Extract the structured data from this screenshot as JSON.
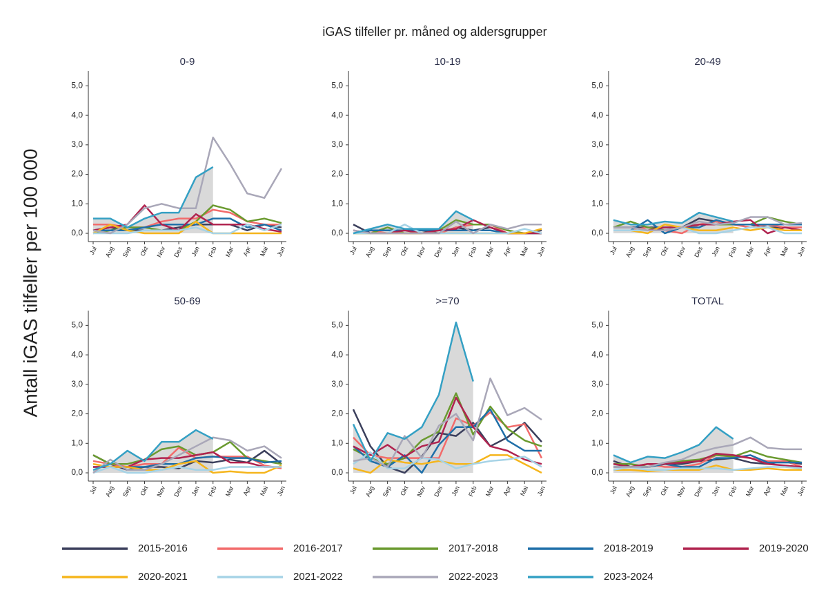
{
  "title": "iGAS tilfeller pr. måned og aldersgrupper",
  "ylabel": "Antall iGAS tilfeller per 100 000",
  "legend": [
    {
      "name": "2015-2016",
      "color": "#3b3f5c"
    },
    {
      "name": "2016-2017",
      "color": "#f26b6b"
    },
    {
      "name": "2017-2018",
      "color": "#6a9a2f"
    },
    {
      "name": "2018-2019",
      "color": "#1f6fa8"
    },
    {
      "name": "2019-2020",
      "color": "#b0234f"
    },
    {
      "name": "2020-2021",
      "color": "#f5b51c"
    },
    {
      "name": "2021-2022",
      "color": "#a6d3e6"
    },
    {
      "name": "2022-2023",
      "color": "#a9a7b8"
    },
    {
      "name": "2023-2024",
      "color": "#34a0c4",
      "area_color": "#d9d9d9"
    }
  ],
  "chart_data": [
    {
      "type": "line",
      "title": "0-9",
      "categories": [
        "Jul",
        "Aug",
        "Sep",
        "Okt",
        "Nov",
        "Des",
        "Jan",
        "Feb",
        "Mar",
        "Apr",
        "Mai",
        "Jun"
      ],
      "ylim": [
        -0.28,
        5.5
      ],
      "yticks": [
        {
          "value": 0,
          "label": "0,0"
        },
        {
          "value": 1,
          "label": "1,0"
        },
        {
          "value": 2,
          "label": "2,0"
        },
        {
          "value": 3,
          "label": "3,0"
        },
        {
          "value": 4,
          "label": "4,0"
        },
        {
          "value": 5,
          "label": "5,0"
        }
      ],
      "series": [
        {
          "values": [
            0.1,
            0.2,
            0.1,
            0.1,
            0.1,
            0.2,
            0.3,
            0.3,
            0.3,
            0.1,
            0.3,
            0.2
          ]
        },
        {
          "values": [
            0.3,
            0.3,
            0.2,
            0.2,
            0.4,
            0.5,
            0.5,
            0.8,
            0.7,
            0.4,
            0.3,
            0.3
          ]
        },
        {
          "values": [
            0.0,
            0.1,
            0.2,
            0.2,
            0.1,
            0.1,
            0.4,
            0.95,
            0.8,
            0.4,
            0.5,
            0.35
          ]
        },
        {
          "values": [
            0.1,
            0.1,
            0.1,
            0.2,
            0.3,
            0.3,
            0.3,
            0.5,
            0.5,
            0.2,
            0.3,
            0.1
          ]
        },
        {
          "values": [
            0.1,
            0.2,
            0.3,
            0.95,
            0.3,
            0.1,
            0.65,
            0.3,
            0.3,
            0.3,
            0.15,
            0.05
          ]
        },
        {
          "values": [
            0.0,
            0.3,
            0.1,
            0.0,
            0.0,
            0.0,
            0.4,
            0.0,
            0.0,
            0.0,
            0.0,
            0.0
          ]
        },
        {
          "values": [
            0.0,
            0.0,
            0.0,
            0.1,
            0.1,
            0.1,
            0.2,
            0.0,
            0.0,
            0.3,
            0.1,
            0.3
          ]
        },
        {
          "values": [
            0.1,
            0.0,
            0.3,
            0.85,
            1.0,
            0.85,
            0.85,
            3.25,
            2.35,
            1.35,
            1.2,
            2.2
          ]
        },
        {
          "values": [
            0.5,
            0.5,
            0.2,
            0.5,
            0.7,
            0.7,
            1.9,
            2.25,
            null,
            null,
            null,
            null
          ]
        }
      ]
    },
    {
      "type": "line",
      "title": "10-19",
      "categories": [
        "Jul",
        "Aug",
        "Sep",
        "Okt",
        "Nov",
        "Des",
        "Jan",
        "Feb",
        "Mar",
        "Apr",
        "Mai",
        "Jun"
      ],
      "ylim": [
        -0.28,
        5.5
      ],
      "yticks": [
        {
          "value": 0,
          "label": "0,0"
        },
        {
          "value": 1,
          "label": "1,0"
        },
        {
          "value": 2,
          "label": "2,0"
        },
        {
          "value": 3,
          "label": "3,0"
        },
        {
          "value": 4,
          "label": "4,0"
        },
        {
          "value": 5,
          "label": "5,0"
        }
      ],
      "series": [
        {
          "values": [
            0.3,
            0.0,
            0.0,
            0.1,
            0.1,
            0.0,
            0.2,
            0.1,
            0.2,
            0.0,
            0.0,
            0.1
          ]
        },
        {
          "values": [
            0.0,
            0.1,
            0.0,
            0.0,
            0.0,
            0.0,
            0.2,
            0.3,
            0.3,
            0.0,
            0.0,
            0.0
          ]
        },
        {
          "values": [
            0.0,
            0.0,
            0.2,
            0.0,
            0.0,
            0.1,
            0.45,
            0.3,
            0.3,
            0.1,
            0.0,
            0.0
          ]
        },
        {
          "values": [
            0.0,
            0.1,
            0.1,
            0.1,
            0.1,
            0.1,
            0.1,
            0.1,
            0.1,
            0.0,
            0.0,
            0.0
          ]
        },
        {
          "values": [
            0.1,
            0.0,
            0.0,
            0.1,
            0.0,
            0.1,
            0.15,
            0.45,
            0.2,
            0.0,
            0.0,
            0.0
          ]
        },
        {
          "values": [
            0.0,
            0.0,
            0.0,
            0.0,
            0.0,
            0.0,
            0.0,
            0.0,
            0.0,
            0.0,
            0.0,
            0.15
          ]
        },
        {
          "values": [
            0.0,
            0.0,
            0.0,
            0.3,
            0.0,
            0.0,
            0.0,
            0.0,
            0.0,
            0.0,
            0.15,
            0.0
          ]
        },
        {
          "values": [
            0.1,
            0.0,
            0.0,
            0.0,
            0.0,
            0.0,
            0.4,
            0.0,
            0.3,
            0.15,
            0.3,
            0.3
          ]
        },
        {
          "values": [
            0.0,
            0.15,
            0.3,
            0.15,
            0.15,
            0.15,
            0.75,
            0.45,
            null,
            null,
            null,
            null
          ]
        }
      ]
    },
    {
      "type": "line",
      "title": "20-49",
      "categories": [
        "Jul",
        "Aug",
        "Sep",
        "Okt",
        "Nov",
        "Des",
        "Jan",
        "Feb",
        "Mar",
        "Apr",
        "Mai",
        "Jun"
      ],
      "ylim": [
        -0.28,
        5.5
      ],
      "yticks": [
        {
          "value": 0,
          "label": "0,0"
        },
        {
          "value": 1,
          "label": "1,0"
        },
        {
          "value": 2,
          "label": "2,0"
        },
        {
          "value": 3,
          "label": "3,0"
        },
        {
          "value": 4,
          "label": "4,0"
        },
        {
          "value": 5,
          "label": "5,0"
        }
      ],
      "series": [
        {
          "values": [
            0.2,
            0.2,
            0.2,
            0.2,
            0.2,
            0.5,
            0.4,
            0.3,
            0.3,
            0.2,
            0.2,
            0.2
          ]
        },
        {
          "values": [
            0.1,
            0.1,
            0.2,
            0.1,
            0.0,
            0.3,
            0.4,
            0.3,
            0.2,
            0.3,
            0.2,
            0.2
          ]
        },
        {
          "values": [
            0.2,
            0.4,
            0.2,
            0.1,
            0.2,
            0.3,
            0.3,
            0.3,
            0.3,
            0.55,
            0.4,
            0.3
          ]
        },
        {
          "values": [
            0.1,
            0.1,
            0.45,
            0.0,
            0.2,
            0.2,
            0.45,
            0.3,
            0.3,
            0.3,
            0.3,
            0.3
          ]
        },
        {
          "values": [
            0.1,
            0.1,
            0.1,
            0.2,
            0.2,
            0.3,
            0.3,
            0.4,
            0.45,
            0.0,
            0.2,
            0.1
          ]
        },
        {
          "values": [
            0.1,
            0.1,
            0.0,
            0.3,
            0.2,
            0.1,
            0.1,
            0.2,
            0.1,
            0.2,
            0.1,
            0.1
          ]
        },
        {
          "values": [
            0.1,
            0.1,
            0.1,
            0.1,
            0.2,
            0.0,
            0.0,
            0.1,
            0.2,
            0.2,
            0.0,
            0.0
          ]
        },
        {
          "values": [
            0.2,
            0.2,
            0.1,
            0.1,
            0.2,
            0.4,
            0.3,
            0.35,
            0.55,
            0.55,
            0.3,
            0.35
          ]
        },
        {
          "values": [
            0.45,
            0.3,
            0.3,
            0.4,
            0.35,
            0.7,
            0.55,
            0.4,
            null,
            null,
            null,
            null
          ]
        }
      ]
    },
    {
      "type": "line",
      "title": "50-69",
      "categories": [
        "Jul",
        "Aug",
        "Sep",
        "Okt",
        "Nov",
        "Des",
        "Jan",
        "Feb",
        "Mar",
        "Apr",
        "Mai",
        "Jun"
      ],
      "ylim": [
        -0.28,
        5.5
      ],
      "yticks": [
        {
          "value": 0,
          "label": "0,0"
        },
        {
          "value": 1,
          "label": "1,0"
        },
        {
          "value": 2,
          "label": "2,0"
        },
        {
          "value": 3,
          "label": "3,0"
        },
        {
          "value": 4,
          "label": "4,0"
        },
        {
          "value": 5,
          "label": "5,0"
        }
      ],
      "series": [
        {
          "values": [
            0.6,
            0.3,
            0.1,
            0.2,
            0.2,
            0.15,
            0.4,
            0.35,
            0.45,
            0.35,
            0.75,
            0.3
          ]
        },
        {
          "values": [
            0.4,
            0.3,
            0.2,
            0.3,
            0.3,
            0.85,
            0.5,
            0.55,
            0.55,
            0.55,
            0.25,
            0.15
          ]
        },
        {
          "values": [
            0.6,
            0.3,
            0.3,
            0.45,
            0.8,
            0.9,
            0.6,
            0.7,
            1.05,
            0.5,
            0.4,
            0.3
          ]
        },
        {
          "values": [
            0.2,
            0.2,
            0.2,
            0.2,
            0.3,
            0.3,
            0.5,
            0.55,
            0.5,
            0.5,
            0.35,
            0.4
          ]
        },
        {
          "values": [
            0.2,
            0.2,
            0.2,
            0.45,
            0.5,
            0.5,
            0.6,
            0.7,
            0.35,
            0.35,
            0.2,
            0.2
          ]
        },
        {
          "values": [
            0.3,
            0.2,
            0.2,
            0.1,
            0.1,
            0.3,
            0.4,
            0.0,
            0.05,
            0.0,
            0.0,
            0.25
          ]
        },
        {
          "values": [
            0.0,
            0.2,
            0.0,
            0.0,
            0.1,
            0.2,
            0.1,
            0.1,
            0.2,
            0.2,
            0.2,
            0.2
          ]
        },
        {
          "values": [
            0.0,
            0.45,
            0.1,
            0.1,
            0.3,
            0.6,
            0.9,
            1.2,
            1.1,
            0.75,
            0.9,
            0.5
          ]
        },
        {
          "values": [
            0.1,
            0.3,
            0.75,
            0.4,
            1.05,
            1.05,
            1.45,
            1.15,
            null,
            null,
            null,
            null
          ]
        }
      ]
    },
    {
      "type": "line",
      "title": ">=70",
      "categories": [
        "Jul",
        "Aug",
        "Sep",
        "Okt",
        "Nov",
        "Des",
        "Jan",
        "Feb",
        "Mar",
        "Apr",
        "Mai",
        "Jun"
      ],
      "ylim": [
        -0.28,
        5.5
      ],
      "yticks": [
        {
          "value": 0,
          "label": "0,0"
        },
        {
          "value": 1,
          "label": "1,0"
        },
        {
          "value": 2,
          "label": "2,0"
        },
        {
          "value": 3,
          "label": "3,0"
        },
        {
          "value": 4,
          "label": "4,0"
        },
        {
          "value": 5,
          "label": "5,0"
        }
      ],
      "series": [
        {
          "values": [
            2.15,
            0.9,
            0.2,
            0.0,
            0.55,
            1.35,
            1.25,
            1.7,
            0.9,
            1.2,
            1.7,
            1.05
          ]
        },
        {
          "values": [
            1.2,
            0.6,
            0.5,
            0.5,
            0.5,
            0.5,
            1.85,
            1.6,
            2.05,
            1.55,
            1.65,
            0.5
          ]
        },
        {
          "values": [
            0.8,
            0.5,
            0.3,
            0.5,
            1.1,
            1.4,
            2.7,
            1.3,
            2.25,
            1.5,
            1.1,
            0.9
          ]
        },
        {
          "values": [
            0.9,
            0.4,
            0.2,
            0.6,
            0.0,
            0.95,
            1.55,
            1.55,
            2.15,
            1.1,
            0.75,
            0.75
          ]
        },
        {
          "values": [
            0.9,
            0.6,
            0.95,
            0.55,
            0.9,
            1.05,
            2.55,
            1.55,
            0.9,
            0.75,
            0.45,
            0.3
          ]
        },
        {
          "values": [
            0.15,
            0.0,
            0.45,
            0.35,
            0.3,
            0.4,
            0.3,
            0.3,
            0.6,
            0.6,
            0.3,
            0.0
          ]
        },
        {
          "values": [
            0.3,
            0.7,
            0.15,
            0.15,
            0.5,
            0.45,
            0.15,
            0.3,
            0.4,
            0.45,
            0.55,
            0.2
          ]
        },
        {
          "values": [
            0.4,
            0.5,
            0.2,
            1.25,
            0.5,
            1.6,
            2.0,
            1.1,
            3.2,
            1.95,
            2.2,
            1.8
          ]
        },
        {
          "values": [
            1.65,
            0.4,
            1.35,
            1.15,
            1.55,
            2.65,
            5.1,
            3.1,
            null,
            null,
            null,
            null
          ]
        }
      ]
    },
    {
      "type": "line",
      "title": "TOTAL",
      "categories": [
        "Jul",
        "Aug",
        "Sep",
        "Okt",
        "Nov",
        "Des",
        "Jan",
        "Feb",
        "Mar",
        "Apr",
        "Mai",
        "Jun"
      ],
      "ylim": [
        -0.28,
        5.5
      ],
      "yticks": [
        {
          "value": 0,
          "label": "0,0"
        },
        {
          "value": 1,
          "label": "1,0"
        },
        {
          "value": 2,
          "label": "2,0"
        },
        {
          "value": 3,
          "label": "3,0"
        },
        {
          "value": 4,
          "label": "4,0"
        },
        {
          "value": 5,
          "label": "5,0"
        }
      ],
      "series": [
        {
          "values": [
            0.4,
            0.2,
            0.2,
            0.3,
            0.3,
            0.4,
            0.45,
            0.5,
            0.35,
            0.3,
            0.4,
            0.3
          ]
        },
        {
          "values": [
            0.2,
            0.2,
            0.3,
            0.2,
            0.2,
            0.3,
            0.6,
            0.55,
            0.5,
            0.4,
            0.4,
            0.2
          ]
        },
        {
          "values": [
            0.3,
            0.3,
            0.2,
            0.3,
            0.4,
            0.45,
            0.6,
            0.55,
            0.75,
            0.55,
            0.45,
            0.35
          ]
        },
        {
          "values": [
            0.2,
            0.2,
            0.2,
            0.3,
            0.2,
            0.2,
            0.5,
            0.5,
            0.6,
            0.35,
            0.35,
            0.35
          ]
        },
        {
          "values": [
            0.3,
            0.2,
            0.3,
            0.3,
            0.35,
            0.4,
            0.65,
            0.6,
            0.5,
            0.3,
            0.25,
            0.2
          ]
        },
        {
          "values": [
            0.1,
            0.1,
            0.05,
            0.1,
            0.1,
            0.1,
            0.25,
            0.1,
            0.1,
            0.15,
            0.1,
            0.1
          ]
        },
        {
          "values": [
            0.1,
            0.2,
            0.1,
            0.1,
            0.15,
            0.15,
            0.15,
            0.1,
            0.15,
            0.2,
            0.2,
            0.15
          ]
        },
        {
          "values": [
            0.2,
            0.2,
            0.2,
            0.35,
            0.45,
            0.7,
            0.85,
            0.95,
            1.2,
            0.85,
            0.8,
            0.8
          ]
        },
        {
          "values": [
            0.6,
            0.35,
            0.55,
            0.5,
            0.7,
            0.95,
            1.55,
            1.15,
            null,
            null,
            null,
            null
          ]
        }
      ]
    }
  ]
}
